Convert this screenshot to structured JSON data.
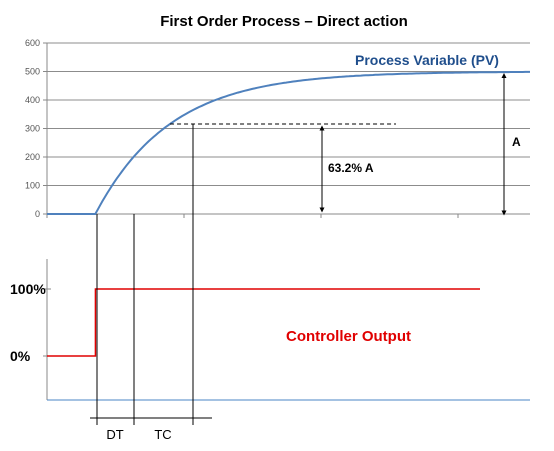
{
  "chart_data": {
    "type": "line",
    "title": "First Order Process – Direct action",
    "top": {
      "ylim": [
        0,
        600
      ],
      "yticks": [
        0,
        100,
        200,
        300,
        400,
        500,
        600
      ],
      "series": [
        {
          "name": "Process Variable (PV)",
          "color": "#4f81bd",
          "final_value": 500,
          "dead_time": 0.37,
          "time_constant": 0.57
        }
      ],
      "reference_63pct": 316,
      "annotations": {
        "pct_amplitude": "63.2% A",
        "amplitude": "A"
      }
    },
    "bottom": {
      "yticks": [
        "100%",
        "0%"
      ],
      "series": [
        {
          "name": "Controller Output",
          "color": "#e00000",
          "initial_value": 0,
          "final_value": 100,
          "step_time": 0
        }
      ]
    },
    "time_segments": [
      {
        "label": "DT",
        "start": 0,
        "end": 0.37
      },
      {
        "label": "TC",
        "start": 0.37,
        "end": 0.94
      }
    ],
    "x_max": 3.69
  }
}
